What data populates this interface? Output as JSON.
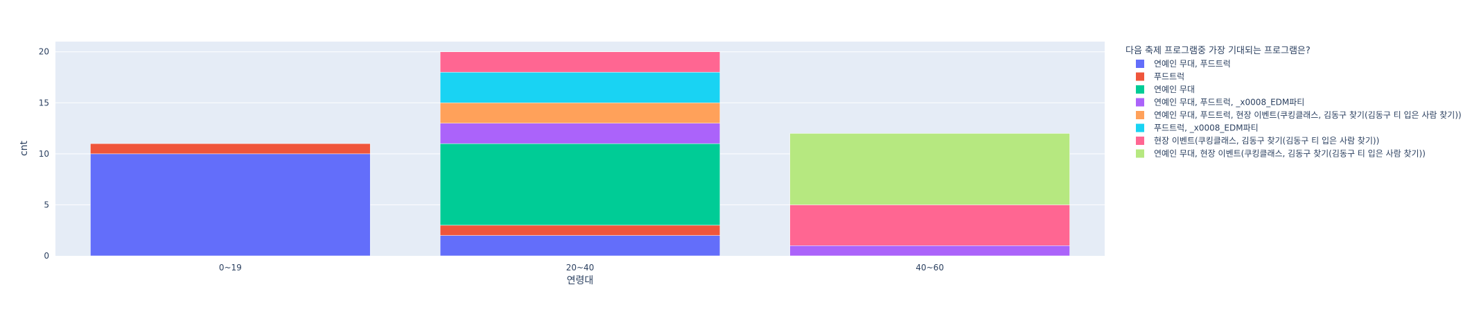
{
  "chart_data": {
    "type": "bar",
    "barmode": "stack",
    "categories": [
      "0~19",
      "20~40",
      "40~60"
    ],
    "xlabel": "연령대",
    "ylabel": "cnt",
    "ylim": [
      0,
      21
    ],
    "yticks": [
      0,
      5,
      10,
      15,
      20
    ],
    "grid": true,
    "legend_title": "다음 축제 프로그램중 가장 기대되는 프로그램은?",
    "legend_position": "right",
    "series": [
      {
        "name": "연예인 무대, 푸드트럭",
        "color": "#636efa",
        "values": [
          10,
          2,
          0
        ]
      },
      {
        "name": "푸드트럭",
        "color": "#ef553b",
        "values": [
          1,
          1,
          0
        ]
      },
      {
        "name": "연예인 무대",
        "color": "#00cc96",
        "values": [
          0,
          8,
          0
        ]
      },
      {
        "name": "연예인 무대, 푸드트럭, _x0008_EDM파티",
        "color": "#ab63fa",
        "values": [
          0,
          2,
          1
        ]
      },
      {
        "name": "연예인 무대, 푸드트럭, 현장 이벤트(쿠킹클래스, 김동구 찾기(김동구 티 입은 사람 찾기))",
        "color": "#ffa15a",
        "values": [
          0,
          2,
          0
        ]
      },
      {
        "name": "푸드트럭, _x0008_EDM파티",
        "color": "#19d3f3",
        "values": [
          0,
          3,
          0
        ]
      },
      {
        "name": "현장 이벤트(쿠킹클래스, 김동구 찾기(김동구 티 입은 사람 찾기))",
        "color": "#ff6692",
        "values": [
          0,
          2,
          4
        ]
      },
      {
        "name": "연예인 무대, 현장 이벤트(쿠킹클래스, 김동구 찾기(김동구 티 입은 사람 찾기))",
        "color": "#b6e880",
        "values": [
          0,
          0,
          7
        ]
      }
    ]
  }
}
